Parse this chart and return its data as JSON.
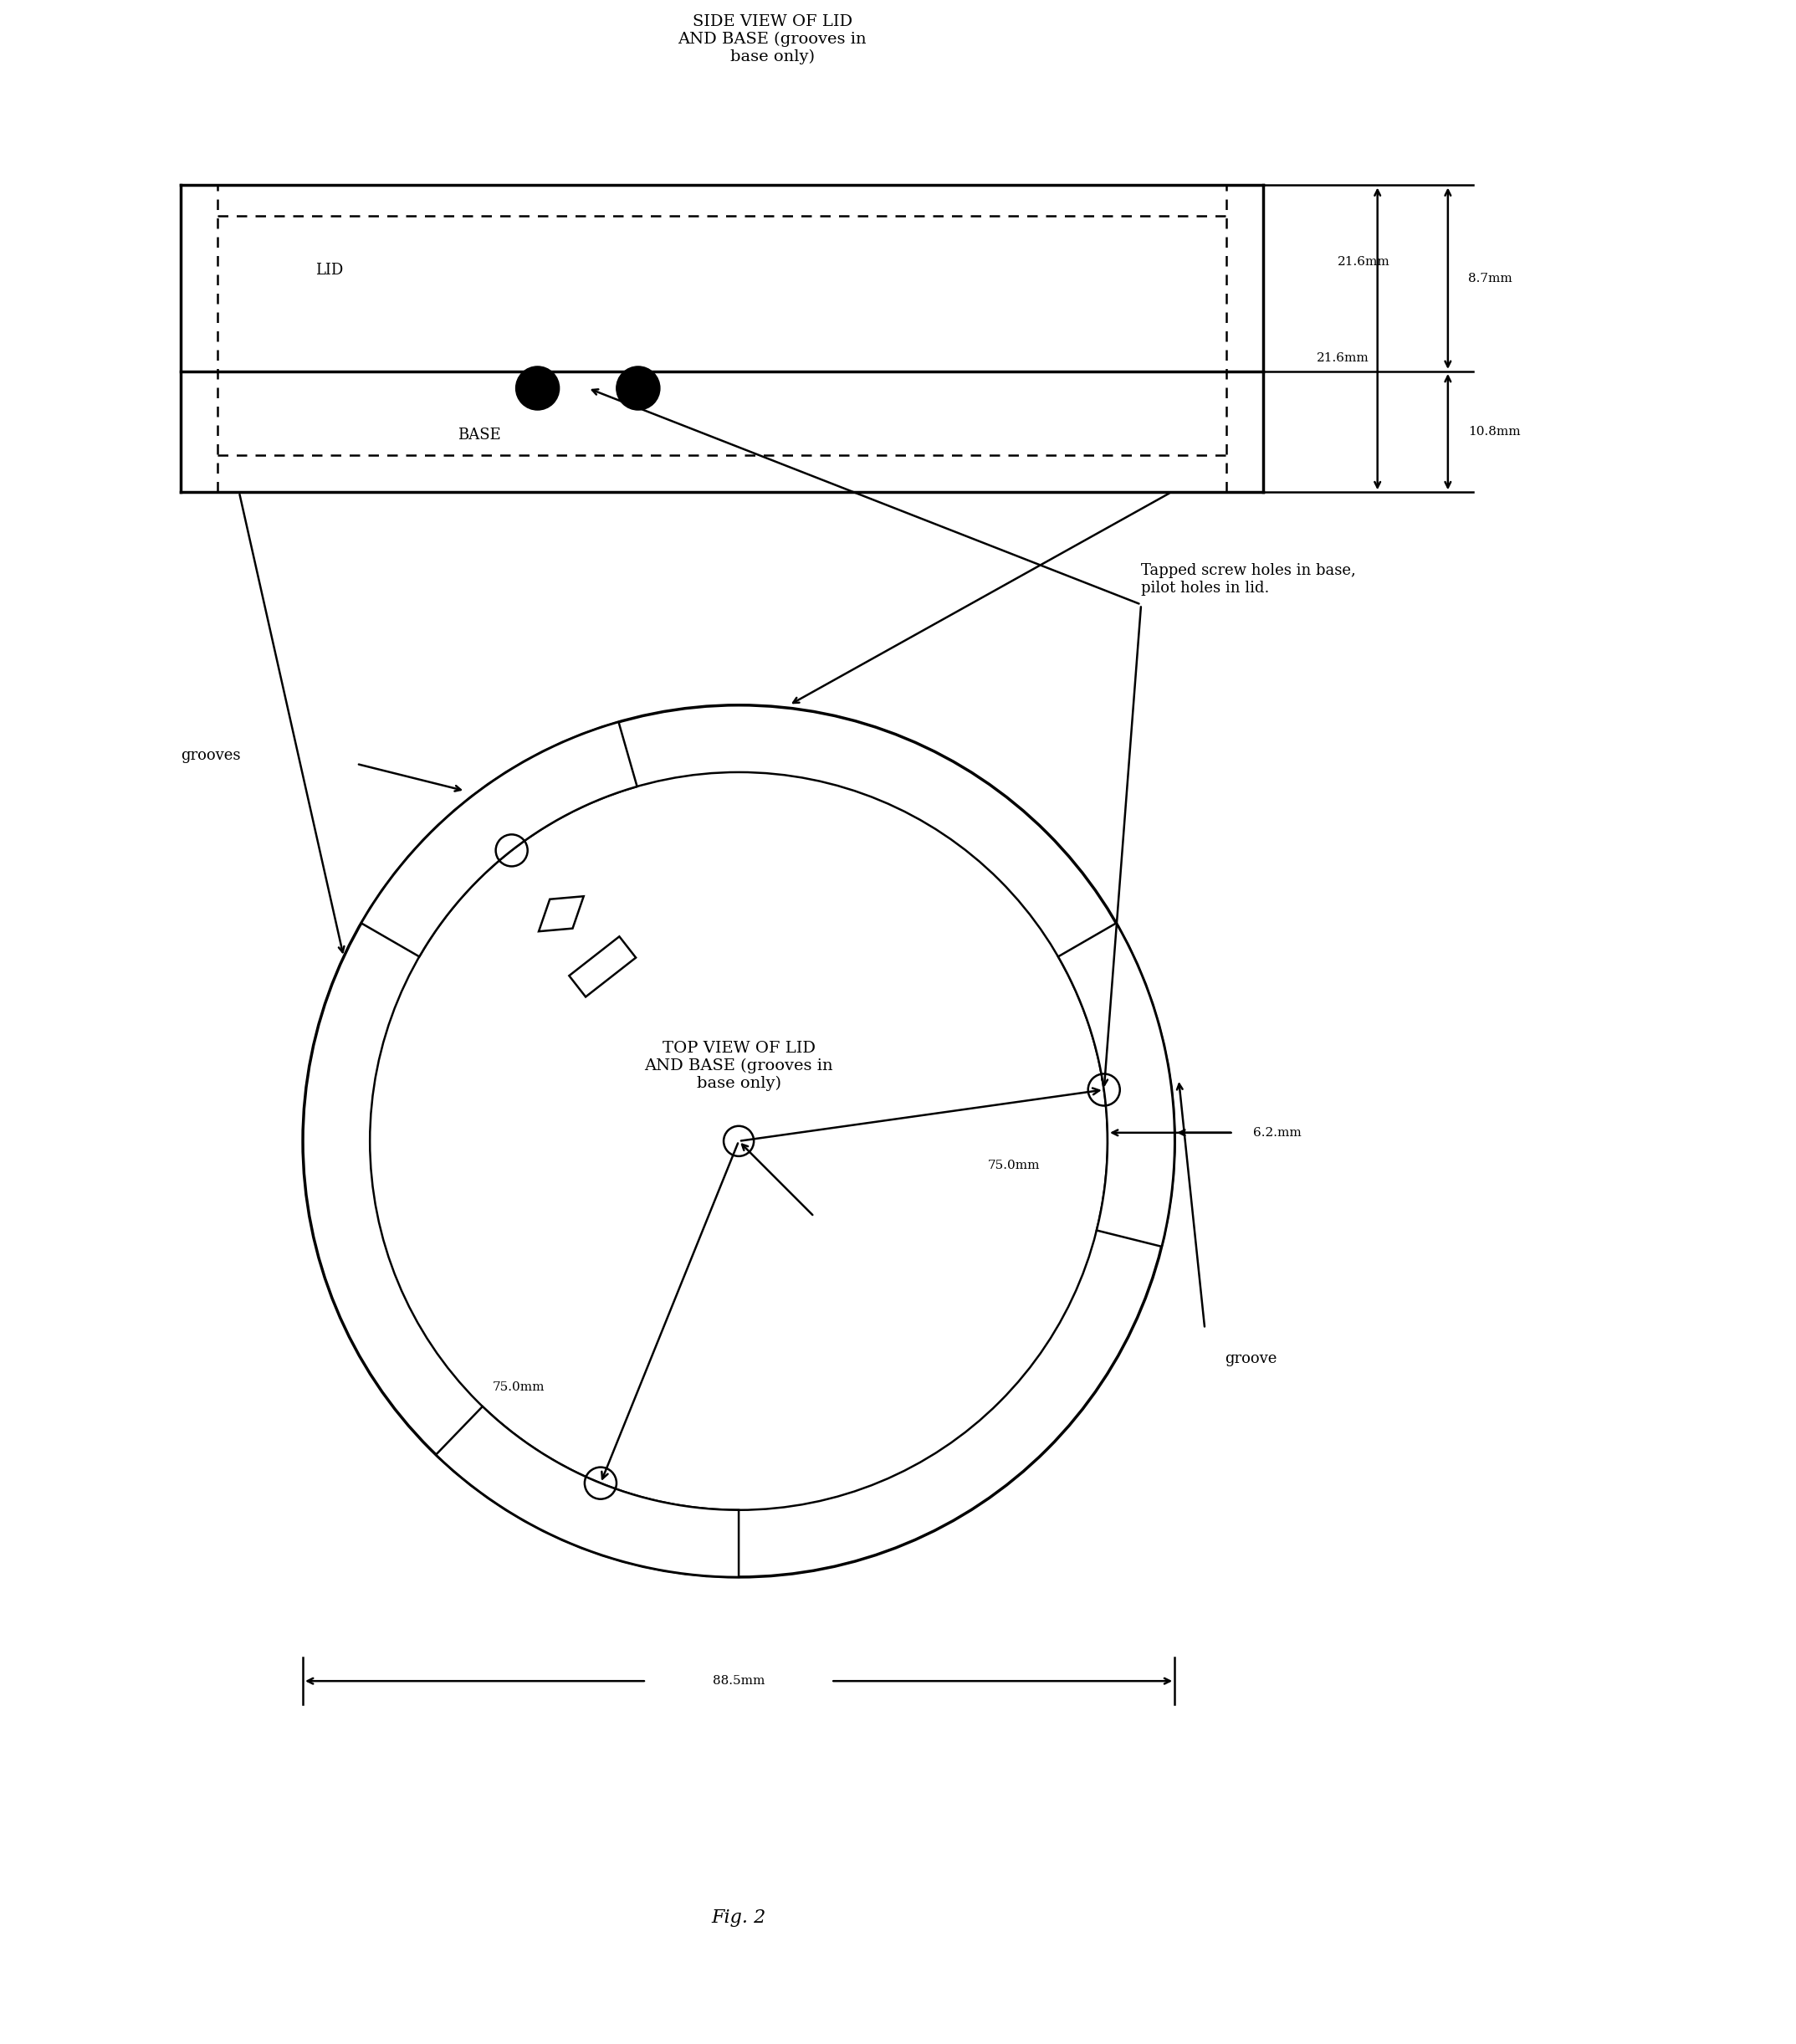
{
  "fig_width": 21.47,
  "fig_height": 24.43,
  "bg_color": "#ffffff",
  "title_side": "SIDE VIEW OF LID\nAND BASE (grooves in\nbase only)",
  "title_top": "TOP VIEW OF LID\nAND BASE (grooves in\nbase only)",
  "fig_label": "Fig. 2",
  "dim_87": "8.7mm",
  "dim_216": "21.6mm",
  "dim_108": "10.8mm",
  "dim_62": "6.2.mm",
  "dim_75a": "75.0mm",
  "dim_75b": "75.0mm",
  "dim_885": "88.5mm",
  "label_lid": "LID",
  "label_base": "BASE",
  "label_grooves": "grooves",
  "label_groove": "groove",
  "label_tapped": "Tapped screw holes in base,\npilot holes in lid."
}
